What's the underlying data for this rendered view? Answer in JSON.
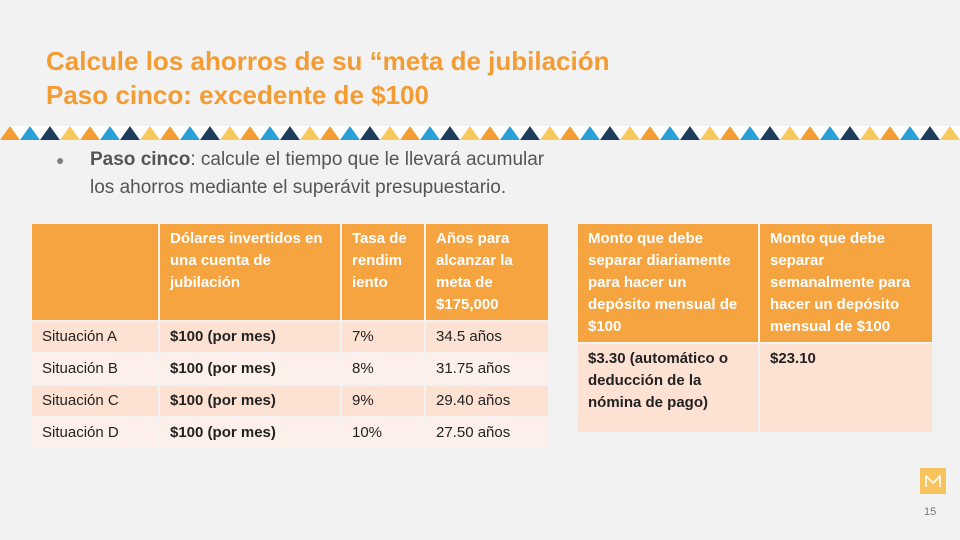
{
  "title": {
    "line1": "Calcule los ahorros de su “meta de jubilación",
    "line2": "Paso cinco: excedente de $100"
  },
  "bullet": {
    "bold": "Paso cinco",
    "rest1": ": calcule el tiempo que le llevará acumular",
    "rest2": "los ahorros mediante el superávit presupuestario."
  },
  "table1": {
    "headers": [
      "",
      "Dólares invertidos en una cuenta de jubilación",
      "Tasa de rendim iento",
      "Años para alcanzar la meta de $175,000"
    ],
    "rows": [
      [
        "Situación A",
        "$100 (por mes)",
        "7%",
        "34.5 años"
      ],
      [
        "Situación B",
        "$100 (por mes)",
        "8%",
        "31.75 años"
      ],
      [
        "Situación C",
        "$100 (por mes)",
        "9%",
        "29.40 años"
      ],
      [
        "Situación D",
        "$100 (por mes)",
        "10%",
        "27.50 años"
      ]
    ]
  },
  "table2": {
    "headers": [
      "Monto que debe separar diariamente para hacer un depósito mensual de $100",
      "Monto que debe separar semanalmente para hacer un depósito mensual de $100"
    ],
    "values": [
      "$3.30 (automático o deducción de la nómina de pago)",
      "$23.10"
    ]
  },
  "page_number": "15",
  "colors": {
    "accent": "#f39c34",
    "header_bg": "#f5a440",
    "row_dark": "#fde2d3",
    "row_light": "#fdf0ea"
  }
}
